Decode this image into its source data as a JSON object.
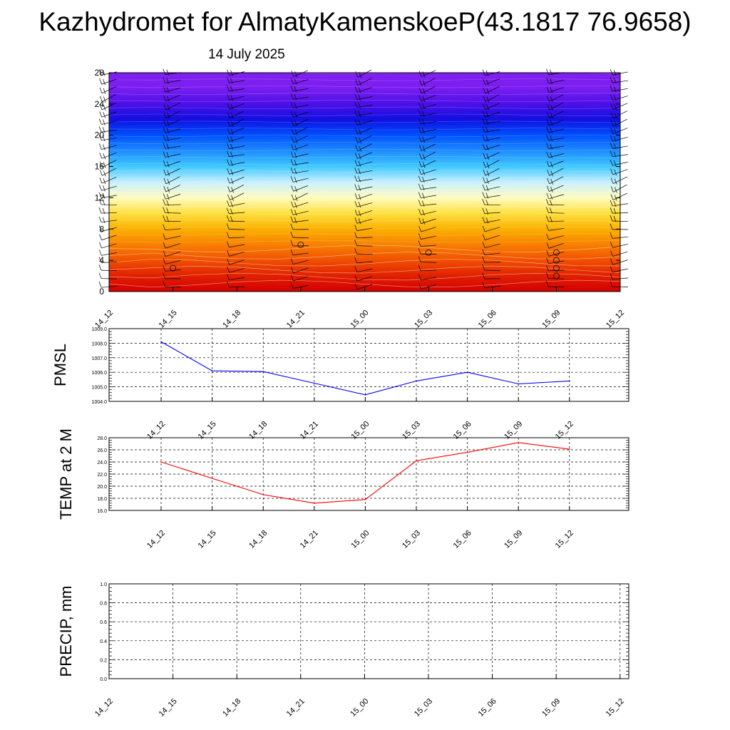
{
  "title": "Kazhydromet for AlmatyKamenskoeP(43.1817 76.9658)",
  "subtitle": "14 July 2025",
  "colors": {
    "pmsl_line": "#0000ff",
    "temp_line": "#ff0000",
    "precip_line": "#006400",
    "gradient": [
      "#d40000",
      "#e02000",
      "#f05000",
      "#f88000",
      "#fbb000",
      "#fde040",
      "#fffcc0",
      "#c8f0ff",
      "#40c8ff",
      "#1e8cff",
      "#0050ff",
      "#1010e0",
      "#4c10e8",
      "#7a1ef0",
      "#8020f0"
    ]
  },
  "chart_data": [
    {
      "type": "heatmap",
      "name": "section",
      "categories": [
        "14_12",
        "14_15",
        "14_18",
        "14_21",
        "15_00",
        "15_03",
        "15_06",
        "15_09",
        "15_12"
      ],
      "y_ticks": [
        "0",
        "4",
        "8",
        "12",
        "16",
        "20",
        "24",
        "28"
      ],
      "ylim": [
        0,
        28
      ],
      "grid": false,
      "overlays": "wind barbs and white contour lines",
      "circle_markers": [
        {
          "x": "14_15",
          "y": 3
        },
        {
          "x": "14_21",
          "y": 6
        },
        {
          "x": "15_03",
          "y": 5
        },
        {
          "x": "15_09",
          "y": 2
        },
        {
          "x": "15_09",
          "y": 3
        },
        {
          "x": "15_09",
          "y": 4
        },
        {
          "x": "15_09",
          "y": 5
        }
      ]
    },
    {
      "type": "line",
      "name": "pmsl",
      "ylabel": "PMSL",
      "categories": [
        "14_12",
        "14_15",
        "14_18",
        "14_21",
        "15_00",
        "15_03",
        "15_06",
        "15_09",
        "15_12"
      ],
      "values": [
        1008.1,
        1006.1,
        1006.05,
        1005.25,
        1004.45,
        1005.4,
        1006.0,
        1005.2,
        1005.4
      ],
      "y_ticks": [
        "1004.0",
        "1005.0",
        "1006.0",
        "1007.0",
        "1008.0",
        "1009.0"
      ],
      "ylim": [
        1004.0,
        1009.0
      ],
      "grid": true
    },
    {
      "type": "line",
      "name": "temp",
      "ylabel": "TEMP at 2 M",
      "categories": [
        "14_12",
        "14_15",
        "14_18",
        "14_21",
        "15_00",
        "15_03",
        "15_06",
        "15_09",
        "15_12"
      ],
      "values": [
        24.0,
        21.3,
        18.6,
        17.2,
        17.8,
        24.2,
        25.6,
        27.2,
        26.1
      ],
      "y_ticks": [
        "16.0",
        "18.0",
        "20.0",
        "22.0",
        "24.0",
        "26.0",
        "28.0"
      ],
      "ylim": [
        16.0,
        28.0
      ],
      "grid": true
    },
    {
      "type": "line",
      "name": "precip",
      "ylabel": "PRECIP, mm",
      "categories": [
        "14_12",
        "14_15",
        "14_18",
        "14_21",
        "15_00",
        "15_03",
        "15_06",
        "15_09",
        "15_12"
      ],
      "values": [
        0,
        0,
        0,
        0,
        0,
        0,
        0,
        0,
        0
      ],
      "y_ticks": [
        "0.0",
        "0.2",
        "0.4",
        "0.6",
        "0.8",
        "1.0"
      ],
      "ylim": [
        0.0,
        1.0
      ],
      "grid": true
    }
  ]
}
